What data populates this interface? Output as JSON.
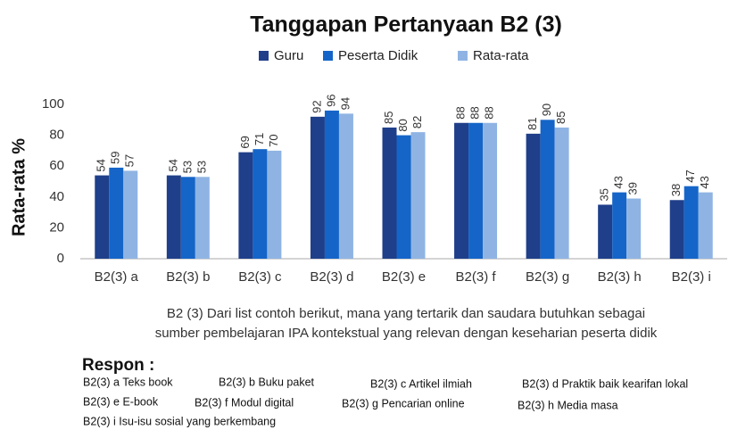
{
  "chart_data": {
    "type": "bar",
    "title": "Tanggapan Pertanyaan B2 (3)",
    "y_label": "Rata-rata %",
    "categories": [
      "B2(3) a",
      "B2(3) b",
      "B2(3) c",
      "B2(3) d",
      "B2(3) e",
      "B2(3) f",
      "B2(3) g",
      "B2(3) h",
      "B2(3) i"
    ],
    "series": [
      {
        "name": "Guru",
        "color": "#1f3f8a",
        "values": [
          54,
          54,
          69,
          92,
          85,
          88,
          81,
          35,
          38
        ]
      },
      {
        "name": "Peserta Didik",
        "color": "#1565c8",
        "values": [
          59,
          53,
          71,
          96,
          80,
          88,
          90,
          43,
          47
        ]
      },
      {
        "name": "Rata-rata",
        "color": "#8fb4e3",
        "values": [
          57,
          53,
          70,
          94,
          82,
          88,
          85,
          39,
          43
        ]
      }
    ],
    "ylim": [
      0,
      100
    ],
    "yticks": [
      0,
      20,
      40,
      60,
      80,
      100
    ],
    "grid": false,
    "legend": "top",
    "caption": [
      "B2 (3) Dari list contoh berikut, mana yang tertarik dan saudara butuhkan sebagai",
      "sumber pembelajaran IPA kontekstual yang relevan dengan keseharian peserta didik"
    ],
    "responses_title": "Respon :",
    "responses": [
      "B2(3) a Teks book",
      "B2(3) b  Buku paket",
      "B2(3) c Artikel ilmiah",
      "B2(3) d Praktik baik kearifan lokal",
      "B2(3) e E-book",
      "B2(3) f Modul digital",
      "B2(3) g Pencarian online",
      "B2(3) h Media masa",
      "B2(3) i Isu-isu sosial yang berkembang"
    ]
  }
}
